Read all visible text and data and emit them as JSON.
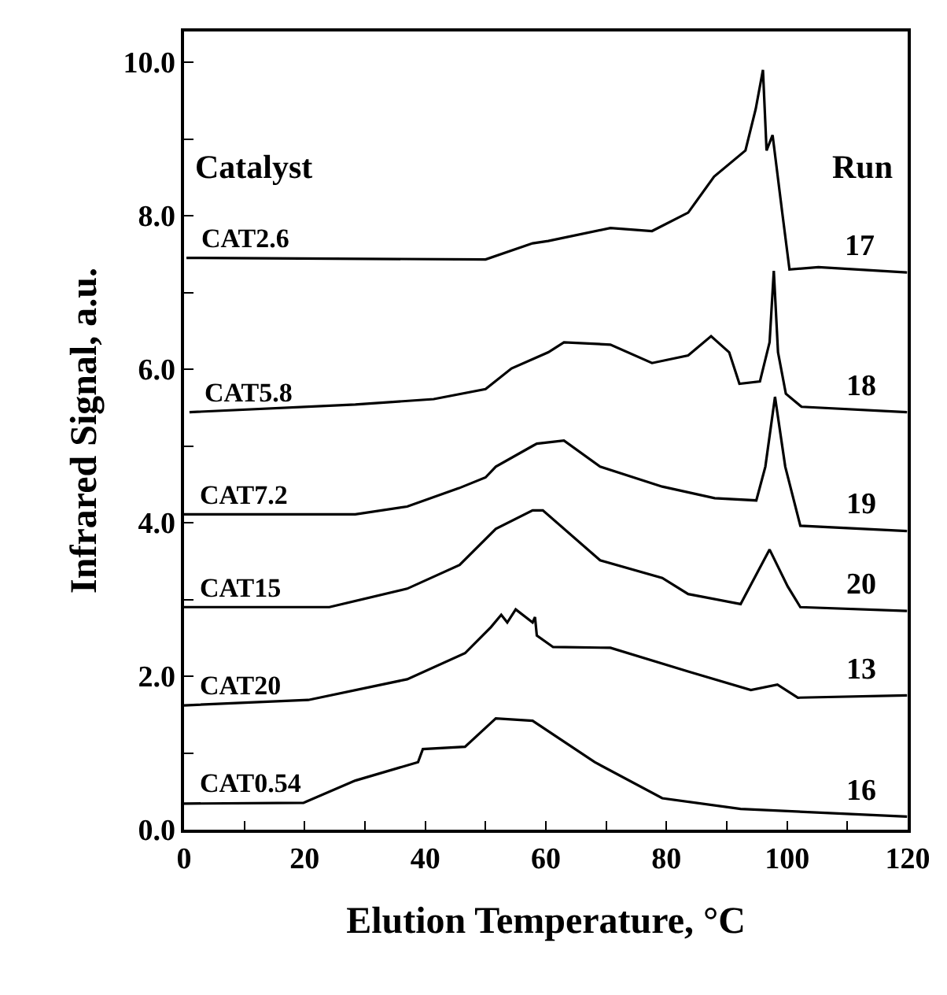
{
  "chart_data": {
    "type": "line",
    "xlabel": "Elution Temperature, °C",
    "ylabel": "Infrared Signal, a.u.",
    "xlim": [
      0,
      120
    ],
    "xticks": [
      0,
      {
        "value": 10,
        "label": null
      },
      20,
      {
        "value": 30,
        "label": null
      },
      40,
      {
        "value": 50,
        "label": null
      },
      60,
      {
        "value": 70,
        "label": null
      },
      80,
      {
        "value": 90,
        "label": null
      },
      100,
      {
        "value": 110,
        "label": null
      },
      120
    ],
    "ylim": [
      0,
      10.4
    ],
    "yticks": [
      {
        "value": 0,
        "label": "0.0"
      },
      {
        "value": 1,
        "label": null
      },
      {
        "value": 2,
        "label": "2.0"
      },
      {
        "value": 3,
        "label": null
      },
      {
        "value": 4,
        "label": "4.0"
      },
      {
        "value": 5,
        "label": null
      },
      {
        "value": 6,
        "label": "6.0"
      },
      {
        "value": 7,
        "label": null
      },
      {
        "value": 8,
        "label": "8.0"
      },
      {
        "value": 9,
        "label": null
      },
      {
        "value": 10,
        "label": "10.0"
      }
    ],
    "grid": false,
    "legend": false,
    "marker": "none",
    "line_style": "solid",
    "series": [
      {
        "name": "CAT2.6",
        "color": "#000000",
        "x": [
          0.4,
          50,
          57.8,
          60.4,
          70.7,
          77.6,
          83.6,
          87.9,
          93.1,
          94.8,
          96.0,
          96.6,
          97.6,
          99.2,
          100.4,
          105.2,
          119.9
        ],
        "values": [
          7.45,
          7.43,
          7.64,
          7.67,
          7.84,
          7.8,
          8.04,
          8.51,
          8.85,
          9.39,
          9.9,
          8.85,
          9.05,
          8.04,
          7.3,
          7.33,
          7.26
        ]
      },
      {
        "name": "CAT5.8",
        "color": "#000000",
        "x": [
          0.9,
          28.4,
          41.4,
          50,
          54.3,
          60.4,
          63,
          70.7,
          77.6,
          83.6,
          87.4,
          90.4,
          92.1,
          95.5,
          97.1,
          97.8,
          98.5,
          99.8,
          102.4,
          119.9
        ],
        "values": [
          5.44,
          5.54,
          5.61,
          5.74,
          6.01,
          6.22,
          6.35,
          6.32,
          6.08,
          6.18,
          6.43,
          6.22,
          5.81,
          5.84,
          6.35,
          7.28,
          6.22,
          5.68,
          5.51,
          5.44
        ]
      },
      {
        "name": "CAT7.2",
        "color": "#000000",
        "x": [
          0,
          28.4,
          37,
          45.6,
          50,
          51.7,
          57.8,
          58.5,
          63,
          69,
          79.3,
          88,
          94.9,
          96.4,
          98,
          99.7,
          102.2,
          119.9
        ],
        "values": [
          4.11,
          4.11,
          4.21,
          4.45,
          4.59,
          4.73,
          5.0,
          5.03,
          5.07,
          4.73,
          4.47,
          4.32,
          4.29,
          4.73,
          5.64,
          4.73,
          3.96,
          3.89
        ]
      },
      {
        "name": "CAT15",
        "color": "#000000",
        "x": [
          0,
          24.1,
          37,
          45.7,
          51.7,
          57.8,
          59.5,
          69,
          79.3,
          83.6,
          92.3,
          97.1,
          100.1,
          102.2,
          119.9
        ],
        "values": [
          2.9,
          2.9,
          3.14,
          3.45,
          3.92,
          4.16,
          4.16,
          3.51,
          3.28,
          3.07,
          2.94,
          3.65,
          3.17,
          2.9,
          2.85
        ]
      },
      {
        "name": "CAT20",
        "color": "#000000",
        "x": [
          0,
          20.6,
          37,
          46.6,
          50.9,
          52.6,
          53.6,
          55,
          57.8,
          58.2,
          58.5,
          61.2,
          70.7,
          83.7,
          94,
          98.4,
          101.8,
          119.9
        ],
        "values": [
          1.62,
          1.69,
          1.96,
          2.3,
          2.64,
          2.8,
          2.7,
          2.87,
          2.7,
          2.77,
          2.53,
          2.38,
          2.37,
          2.06,
          1.82,
          1.89,
          1.72,
          1.75
        ]
      },
      {
        "name": "CAT0.54",
        "color": "#000000",
        "x": [
          0,
          19.8,
          28.4,
          38.8,
          39.6,
          46.6,
          51.7,
          57.8,
          68.1,
          79.3,
          92.3,
          119.9
        ],
        "values": [
          0.34,
          0.35,
          0.64,
          0.88,
          1.05,
          1.08,
          1.45,
          1.42,
          0.88,
          0.41,
          0.27,
          0.17
        ]
      }
    ],
    "annotations": [
      "Catalyst",
      "Run",
      "17",
      "18",
      "19",
      "20",
      "13",
      "16"
    ]
  }
}
